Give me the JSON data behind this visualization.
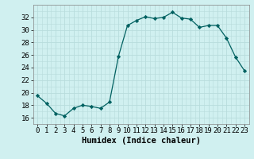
{
  "x": [
    0,
    1,
    2,
    3,
    4,
    5,
    6,
    7,
    8,
    9,
    10,
    11,
    12,
    13,
    14,
    15,
    16,
    17,
    18,
    19,
    20,
    21,
    22,
    23
  ],
  "y": [
    19.5,
    18.3,
    16.7,
    16.3,
    17.5,
    18.0,
    17.8,
    17.5,
    18.5,
    25.8,
    30.7,
    31.5,
    32.1,
    31.8,
    32.0,
    32.8,
    31.9,
    31.7,
    30.4,
    30.7,
    30.7,
    28.7,
    25.7,
    23.5
  ],
  "line_color": "#006060",
  "marker": "D",
  "marker_size": 2.2,
  "bg_color": "#d0f0f0",
  "grid_color": "#b8dcdc",
  "xlabel": "Humidex (Indice chaleur)",
  "ylim": [
    15,
    34
  ],
  "xlim": [
    -0.5,
    23.5
  ],
  "yticks": [
    16,
    18,
    20,
    22,
    24,
    26,
    28,
    30,
    32
  ],
  "xticks": [
    0,
    1,
    2,
    3,
    4,
    5,
    6,
    7,
    8,
    9,
    10,
    11,
    12,
    13,
    14,
    15,
    16,
    17,
    18,
    19,
    20,
    21,
    22,
    23
  ],
  "xlabel_fontsize": 7.5,
  "tick_fontsize": 6.5
}
